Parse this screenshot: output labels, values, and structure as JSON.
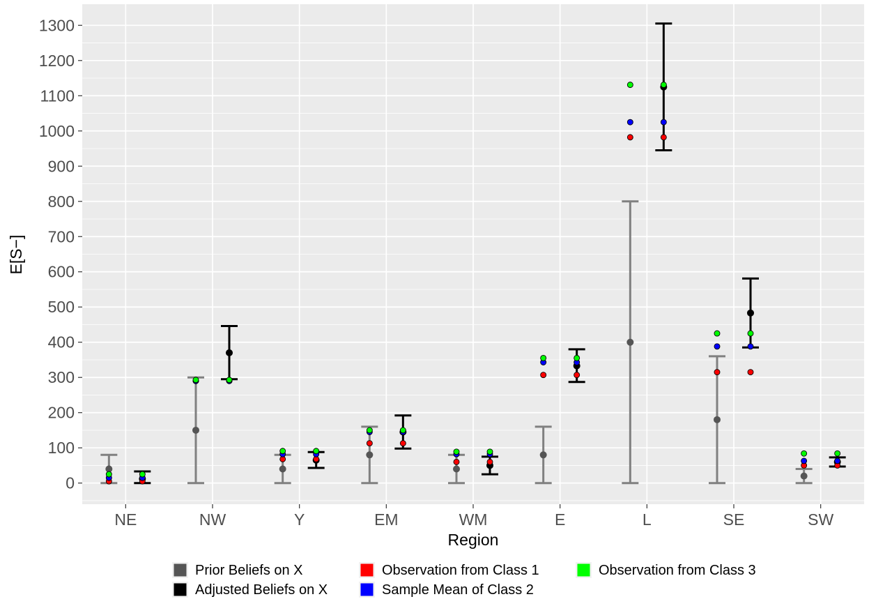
{
  "chart_data": {
    "type": "scatter",
    "xlabel": "Region",
    "ylabel": "E[S−]",
    "categories": [
      "NE",
      "NW",
      "Y",
      "EM",
      "WM",
      "E",
      "L",
      "SE",
      "SW"
    ],
    "ylim": [
      -60,
      1360
    ],
    "yticks": [
      0,
      100,
      200,
      300,
      400,
      500,
      600,
      700,
      800,
      900,
      1000,
      1100,
      1200,
      1300
    ],
    "grid": true,
    "legend_position": "bottom",
    "colors": {
      "panel": "#ebebeb",
      "grid": "#ffffff",
      "prior": "#808080",
      "prior_point": "#555555",
      "adjusted": "#000000",
      "class1": "#ff0000",
      "class2": "#0000ff",
      "class3": "#00ff00"
    },
    "series": [
      {
        "name": "Prior Beliefs on X",
        "kind": "prior",
        "values": [
          {
            "y": 40,
            "low": 0,
            "high": 80
          },
          {
            "y": 150,
            "low": 0,
            "high": 300
          },
          {
            "y": 40,
            "low": 0,
            "high": 80
          },
          {
            "y": 80,
            "low": 0,
            "high": 160
          },
          {
            "y": 40,
            "low": 0,
            "high": 80
          },
          {
            "y": 80,
            "low": 0,
            "high": 160
          },
          {
            "y": 400,
            "low": 0,
            "high": 800
          },
          {
            "y": 180,
            "low": 0,
            "high": 360
          },
          {
            "y": 20,
            "low": 0,
            "high": 40
          }
        ]
      },
      {
        "name": "Adjusted Beliefs on X",
        "kind": "adjusted",
        "values": [
          {
            "y": 12,
            "low": 0,
            "high": 33
          },
          {
            "y": 370,
            "low": 295,
            "high": 446
          },
          {
            "y": 65,
            "low": 43,
            "high": 88
          },
          {
            "y": 145,
            "low": 98,
            "high": 192
          },
          {
            "y": 50,
            "low": 25,
            "high": 75
          },
          {
            "y": 333,
            "low": 287,
            "high": 380
          },
          {
            "y": 1125,
            "low": 945,
            "high": 1305
          },
          {
            "y": 483,
            "low": 385,
            "high": 581
          },
          {
            "y": 60,
            "low": 47,
            "high": 73
          }
        ]
      },
      {
        "name": "Observation from Class 1",
        "kind": "obs",
        "values": [
          5,
          290,
          68,
          113,
          60,
          307,
          982,
          315,
          50
        ]
      },
      {
        "name": "Sample Mean of Class 2",
        "kind": "obs",
        "values": [
          15,
          290,
          82,
          145,
          82,
          343,
          1025,
          388,
          63
        ]
      },
      {
        "name": "Observation from Class 3",
        "kind": "obs",
        "values": [
          25,
          293,
          91,
          150,
          89,
          355,
          1131,
          425,
          84
        ]
      }
    ]
  }
}
